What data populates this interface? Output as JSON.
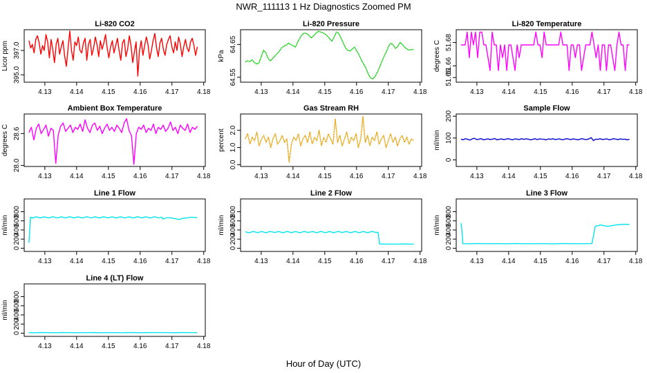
{
  "figure": {
    "title": "NWR_111113  1 Hz Diagnostics Zoomed PM",
    "xlabel": "Hour of Day (UTC)"
  },
  "chart_data": [
    {
      "type": "line",
      "title": "Li-820 CO2",
      "ylabel": "Licor ppm",
      "xlim": [
        4.1235,
        4.1805
      ],
      "xticks": [
        4.13,
        4.14,
        4.15,
        4.16,
        4.17,
        4.18
      ],
      "ylim": [
        394.4,
        398.7
      ],
      "yticks": [
        395.0,
        397.0
      ],
      "ytick_labels": [
        "395.0",
        "397.0"
      ],
      "color": "#ff0000",
      "x_range": [
        4.125,
        4.178
      ],
      "values": [
        397.8,
        397.2,
        397.5,
        396.8,
        397.9,
        398.2,
        397.6,
        396.7,
        397.4,
        397.0,
        398.3,
        397.7,
        396.4,
        397.9,
        397.1,
        396.0,
        397.5,
        398.0,
        396.7,
        397.3,
        397.8,
        396.5,
        395.7,
        397.2,
        398.6,
        397.0,
        396.2,
        397.7,
        397.4,
        398.1,
        397.0,
        396.8,
        397.6,
        398.0,
        396.2,
        397.5,
        397.9,
        396.6,
        397.2,
        398.1,
        397.5,
        396.5,
        397.8,
        397.1,
        397.6,
        398.3,
        397.2,
        396.4,
        397.3,
        397.8,
        396.8,
        397.4,
        398.0,
        397.0,
        396.2,
        397.6,
        397.9,
        396.5,
        397.1,
        398.2,
        397.4,
        396.0,
        396.9,
        397.7,
        394.9,
        397.0,
        397.8,
        396.6,
        397.4,
        398.1,
        397.5,
        396.3,
        397.0,
        397.8,
        398.4,
        397.2,
        396.5,
        397.6,
        398.0,
        397.1,
        396.6,
        397.5,
        397.9,
        398.2,
        397.3,
        396.8,
        397.7,
        397.0,
        398.1,
        397.5,
        396.5,
        397.3,
        397.9,
        397.2,
        396.9,
        397.7,
        398.0,
        397.4,
        396.6,
        397.3
      ]
    },
    {
      "type": "line",
      "title": "Li-820 Pressure",
      "ylabel": "kPa",
      "xlim": [
        4.1235,
        4.1805
      ],
      "xticks": [
        4.13,
        4.14,
        4.15,
        4.16,
        4.17,
        4.18
      ],
      "ylim": [
        64.535,
        64.695
      ],
      "yticks": [
        64.55,
        64.65
      ],
      "ytick_labels": [
        "64.55",
        "64.65"
      ],
      "color": "#00cc00",
      "x_range": [
        4.125,
        4.178
      ],
      "values": [
        64.597,
        64.6,
        64.598,
        64.603,
        64.595,
        64.59,
        64.594,
        64.612,
        64.632,
        64.625,
        64.608,
        64.6,
        64.607,
        64.615,
        64.622,
        64.63,
        64.64,
        64.645,
        64.648,
        64.654,
        64.65,
        64.646,
        64.642,
        64.657,
        64.67,
        64.68,
        64.685,
        64.683,
        64.677,
        64.67,
        64.676,
        64.684,
        64.69,
        64.688,
        64.686,
        64.682,
        64.676,
        64.668,
        64.66,
        64.672,
        64.688,
        64.684,
        64.67,
        64.655,
        64.64,
        64.632,
        64.63,
        64.636,
        64.642,
        64.63,
        64.618,
        64.603,
        64.59,
        64.578,
        64.56,
        64.548,
        64.545,
        64.552,
        64.565,
        64.58,
        64.598,
        64.614,
        64.628,
        64.645,
        64.654,
        64.648,
        64.638,
        64.644,
        64.656,
        64.65,
        64.642,
        64.636,
        64.633,
        64.634,
        64.635
      ]
    },
    {
      "type": "line",
      "title": "Li-820 Temperature",
      "ylabel": "degrees C",
      "xlim": [
        4.1235,
        4.1805
      ],
      "xticks": [
        4.13,
        4.14,
        4.15,
        4.16,
        4.17,
        4.18
      ],
      "ylim": [
        51.646,
        51.691
      ],
      "yticks": [
        51.65,
        51.66,
        51.68
      ],
      "ytick_labels": [
        "51.65",
        "51.66",
        "51.68"
      ],
      "color": "#ff00ff",
      "x_range": [
        4.125,
        4.178
      ],
      "values": [
        51.678,
        51.678,
        51.678,
        51.689,
        51.667,
        51.689,
        51.678,
        51.689,
        51.667,
        51.689,
        51.689,
        51.678,
        51.678,
        51.667,
        51.656,
        51.689,
        51.678,
        51.678,
        51.656,
        51.678,
        51.667,
        51.678,
        51.656,
        51.678,
        51.678,
        51.667,
        51.656,
        51.678,
        51.667,
        51.678,
        51.678,
        51.678,
        51.678,
        51.678,
        51.678,
        51.678,
        51.689,
        51.678,
        51.678,
        51.667,
        51.689,
        51.678,
        51.678,
        51.678,
        51.678,
        51.678,
        51.678,
        51.678,
        51.689,
        51.678,
        51.678,
        51.678,
        51.656,
        51.678,
        51.678,
        51.667,
        51.678,
        51.678,
        51.656,
        51.667,
        51.678,
        51.678,
        51.678,
        51.689,
        51.678,
        51.667,
        51.678,
        51.656,
        51.678,
        51.678,
        51.656,
        51.678,
        51.678,
        51.667,
        51.656,
        51.678,
        51.689,
        51.678,
        51.678,
        51.656,
        51.678,
        51.678
      ]
    },
    {
      "type": "line",
      "title": "Ambient Box Temperature",
      "ylabel": "degrees C",
      "xlim": [
        4.1235,
        4.1805
      ],
      "xticks": [
        4.13,
        4.14,
        4.15,
        4.16,
        4.17,
        4.18
      ],
      "ylim": [
        27.98,
        28.97
      ],
      "yticks": [
        28.0,
        28.6
      ],
      "ytick_labels": [
        "28.0",
        "28.6"
      ],
      "color": "#ff00ff",
      "x_range": [
        4.125,
        4.178
      ],
      "values": [
        28.62,
        28.72,
        28.48,
        28.7,
        28.78,
        28.6,
        28.68,
        28.76,
        28.55,
        28.7,
        28.66,
        28.04,
        28.58,
        28.74,
        28.8,
        28.64,
        28.7,
        28.76,
        28.62,
        28.72,
        28.68,
        28.78,
        28.64,
        28.86,
        28.7,
        28.62,
        28.76,
        28.8,
        28.66,
        28.74,
        28.6,
        28.7,
        28.78,
        28.66,
        28.72,
        28.64,
        28.76,
        28.7,
        28.62,
        28.8,
        28.88,
        28.66,
        28.56,
        28.02,
        28.6,
        28.72,
        28.68,
        28.76,
        28.62,
        28.7,
        28.66,
        28.78,
        28.6,
        28.72,
        28.68,
        28.76,
        28.64,
        28.7,
        28.82,
        28.66,
        28.72,
        28.6,
        28.76,
        28.7,
        28.66,
        28.78,
        28.62,
        28.72,
        28.68,
        28.74
      ]
    },
    {
      "type": "line",
      "title": "Gas Stream RH",
      "ylabel": "percent",
      "xlim": [
        4.1235,
        4.1805
      ],
      "xticks": [
        4.13,
        4.14,
        4.15,
        4.16,
        4.17,
        4.18
      ],
      "ylim": [
        -0.1,
        2.95
      ],
      "yticks": [
        0.0,
        1.0,
        2.0
      ],
      "ytick_labels": [
        "0.0",
        "1.0",
        "2.0"
      ],
      "color": "#e69f00",
      "x_range": [
        4.125,
        4.178
      ],
      "values": [
        1.5,
        1.8,
        1.2,
        1.6,
        1.4,
        1.9,
        1.1,
        1.5,
        1.7,
        1.3,
        1.6,
        1.0,
        1.5,
        1.8,
        1.2,
        1.4,
        1.7,
        1.3,
        1.5,
        0.15,
        1.2,
        1.6,
        1.4,
        1.8,
        1.1,
        1.5,
        1.7,
        1.3,
        1.9,
        1.2,
        1.6,
        1.4,
        2.0,
        1.1,
        1.6,
        1.3,
        1.8,
        1.5,
        1.2,
        2.65,
        1.3,
        1.7,
        1.1,
        1.5,
        1.9,
        1.2,
        1.6,
        1.4,
        1.8,
        1.0,
        1.5,
        2.8,
        1.3,
        1.7,
        1.1,
        1.6,
        1.4,
        1.9,
        1.2,
        1.5,
        1.7,
        1.0,
        1.4,
        1.8,
        1.3,
        1.6,
        1.1,
        1.5,
        1.7,
        1.3,
        1.6,
        1.2,
        1.5,
        1.4
      ]
    },
    {
      "type": "line",
      "title": "Sample Flow",
      "ylabel": "ml/min",
      "xlim": [
        4.1235,
        4.1805
      ],
      "xticks": [
        4.13,
        4.14,
        4.15,
        4.16,
        4.17,
        4.18
      ],
      "ylim": [
        -30,
        210
      ],
      "yticks": [
        0,
        100,
        200
      ],
      "ytick_labels": [
        "0",
        "100",
        "200"
      ],
      "color": "#0000cc",
      "x_range": [
        4.125,
        4.178
      ],
      "values": [
        95,
        92,
        97,
        94,
        91,
        96,
        99,
        93,
        95,
        97,
        92,
        94,
        96,
        93,
        95,
        98,
        92,
        94,
        96,
        93,
        95,
        97,
        94,
        92,
        96,
        95,
        93,
        97,
        94,
        96,
        95,
        92,
        94,
        97,
        93,
        96,
        95,
        94,
        92,
        96,
        94,
        97,
        93,
        95,
        96,
        92,
        94,
        97,
        95,
        93,
        96,
        94,
        92,
        95,
        97,
        94,
        93,
        96,
        102,
        88,
        95,
        94,
        97,
        93,
        95,
        96,
        92,
        94,
        97,
        95,
        93,
        96,
        94,
        95,
        92,
        94
      ]
    },
    {
      "type": "line",
      "title": "Line 1 Flow",
      "ylabel": "ml/min",
      "xlim": [
        4.1235,
        4.1805
      ],
      "xticks": [
        4.13,
        4.14,
        4.15,
        4.16,
        4.17,
        4.18
      ],
      "ylim": [
        -70,
        1080
      ],
      "yticks": [
        0,
        200,
        400,
        600,
        800
      ],
      "ytick_labels": [
        "0",
        "200",
        "400",
        "600",
        "800"
      ],
      "color": "#00e5ee",
      "x": [
        4.125,
        4.1255,
        4.1262,
        4.1272,
        4.1285,
        4.1298,
        4.1312,
        4.1325,
        4.1338,
        4.1352,
        4.1365,
        4.1378,
        4.1392,
        4.1405,
        4.1418,
        4.1432,
        4.1445,
        4.1458,
        4.1472,
        4.1485,
        4.1498,
        4.1512,
        4.1525,
        4.1538,
        4.1552,
        4.1565,
        4.1578,
        4.1592,
        4.1605,
        4.1618,
        4.1632,
        4.1645,
        4.1658,
        4.1668,
        4.1672,
        4.1682,
        4.1695,
        4.1708,
        4.1722,
        4.1735,
        4.1748,
        4.1762,
        4.1772,
        4.178
      ],
      "values": [
        120,
        680,
        660,
        690,
        665,
        688,
        662,
        690,
        664,
        688,
        662,
        690,
        665,
        688,
        662,
        690,
        664,
        688,
        662,
        690,
        665,
        688,
        662,
        690,
        664,
        688,
        662,
        690,
        665,
        688,
        662,
        690,
        664,
        680,
        640,
        665,
        668,
        650,
        630,
        655,
        665,
        680,
        675,
        668
      ]
    },
    {
      "type": "line",
      "title": "Line 2 Flow",
      "ylabel": "ml/min",
      "xlim": [
        4.1235,
        4.1805
      ],
      "xticks": [
        4.13,
        4.14,
        4.15,
        4.16,
        4.17,
        4.18
      ],
      "ylim": [
        -70,
        1080
      ],
      "yticks": [
        0,
        200,
        400,
        600,
        800
      ],
      "ytick_labels": [
        "0",
        "200",
        "400",
        "600",
        "800"
      ],
      "color": "#00e5ee",
      "x": [
        4.125,
        4.1262,
        4.1275,
        4.1288,
        4.1302,
        4.1315,
        4.1328,
        4.1342,
        4.1355,
        4.1368,
        4.1382,
        4.1395,
        4.1408,
        4.1422,
        4.1435,
        4.1448,
        4.1462,
        4.1475,
        4.1488,
        4.1502,
        4.1515,
        4.1528,
        4.1542,
        4.1555,
        4.1568,
        4.1582,
        4.1595,
        4.1608,
        4.1622,
        4.1635,
        4.1648,
        4.1662,
        4.1668,
        4.1672,
        4.1685,
        4.1705,
        4.1725,
        4.1745,
        4.1765,
        4.178
      ],
      "values": [
        360,
        340,
        368,
        342,
        366,
        340,
        368,
        344,
        366,
        340,
        368,
        342,
        366,
        340,
        368,
        344,
        366,
        340,
        368,
        342,
        366,
        340,
        368,
        344,
        366,
        340,
        368,
        342,
        366,
        340,
        368,
        344,
        350,
        95,
        90,
        92,
        90,
        93,
        90,
        92
      ]
    },
    {
      "type": "line",
      "title": "Line 3 Flow",
      "ylabel": "ml/min",
      "xlim": [
        4.1235,
        4.1805
      ],
      "xticks": [
        4.13,
        4.14,
        4.15,
        4.16,
        4.17,
        4.18
      ],
      "ylim": [
        -70,
        1080
      ],
      "yticks": [
        0,
        200,
        400,
        600,
        800
      ],
      "ytick_labels": [
        "0",
        "200",
        "400",
        "600",
        "800"
      ],
      "color": "#00e5ee",
      "x": [
        4.125,
        4.1252,
        4.1256,
        4.127,
        4.13,
        4.133,
        4.136,
        4.139,
        4.142,
        4.145,
        4.148,
        4.151,
        4.154,
        4.157,
        4.16,
        4.163,
        4.1662,
        4.1668,
        4.1672,
        4.169,
        4.171,
        4.173,
        4.175,
        4.177,
        4.178
      ],
      "values": [
        550,
        460,
        100,
        98,
        102,
        99,
        101,
        98,
        102,
        100,
        99,
        101,
        98,
        102,
        100,
        99,
        102,
        300,
        480,
        510,
        480,
        500,
        520,
        525,
        520
      ]
    },
    {
      "type": "line",
      "title": "Line 4 (LT) Flow",
      "ylabel": "ml/min",
      "xlim": [
        4.1235,
        4.1805
      ],
      "xticks": [
        4.13,
        4.14,
        4.15,
        4.16,
        4.17,
        4.18
      ],
      "ylim": [
        -70,
        1080
      ],
      "yticks": [
        0,
        200,
        400,
        600,
        800
      ],
      "ytick_labels": [
        "0",
        "200",
        "400",
        "600",
        "800"
      ],
      "color": "#00e5ee",
      "x_range": [
        4.125,
        4.178
      ],
      "values": [
        12,
        10,
        13,
        11,
        12,
        10,
        13,
        11,
        12,
        10,
        12,
        11,
        13,
        10,
        12,
        11,
        12,
        10,
        13,
        11,
        12,
        10,
        13,
        11,
        12,
        11,
        12,
        10,
        13,
        11,
        12,
        11
      ]
    }
  ]
}
